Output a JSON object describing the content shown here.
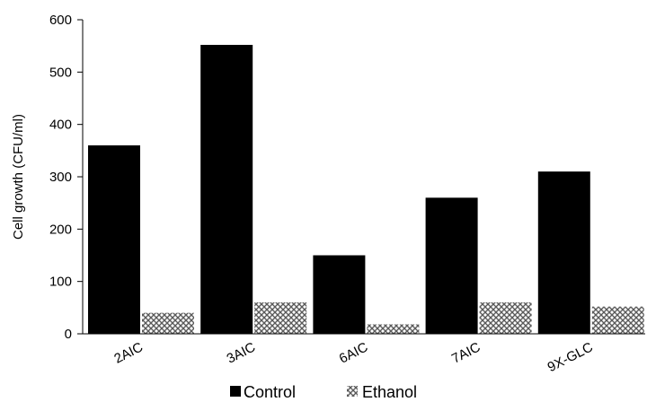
{
  "chart_data": {
    "type": "bar",
    "title": "",
    "xlabel": "",
    "ylabel": "Cell growth (CFU/ml)",
    "categories": [
      "2AIC",
      "3AIC",
      "6AIC",
      "7AIC",
      "9X-GLC"
    ],
    "series": [
      {
        "name": "Control",
        "values": [
          360,
          552,
          150,
          260,
          310
        ],
        "color": "#000000",
        "pattern": "solid"
      },
      {
        "name": "Ethanol",
        "values": [
          40,
          60,
          18,
          60,
          52
        ],
        "color": "#888888",
        "pattern": "crosshatch"
      }
    ],
    "ylim": [
      0,
      600
    ],
    "yticks": [
      "0",
      "100",
      "200",
      "300",
      "400",
      "500",
      "600"
    ],
    "grid": false,
    "legend": "bottom"
  }
}
